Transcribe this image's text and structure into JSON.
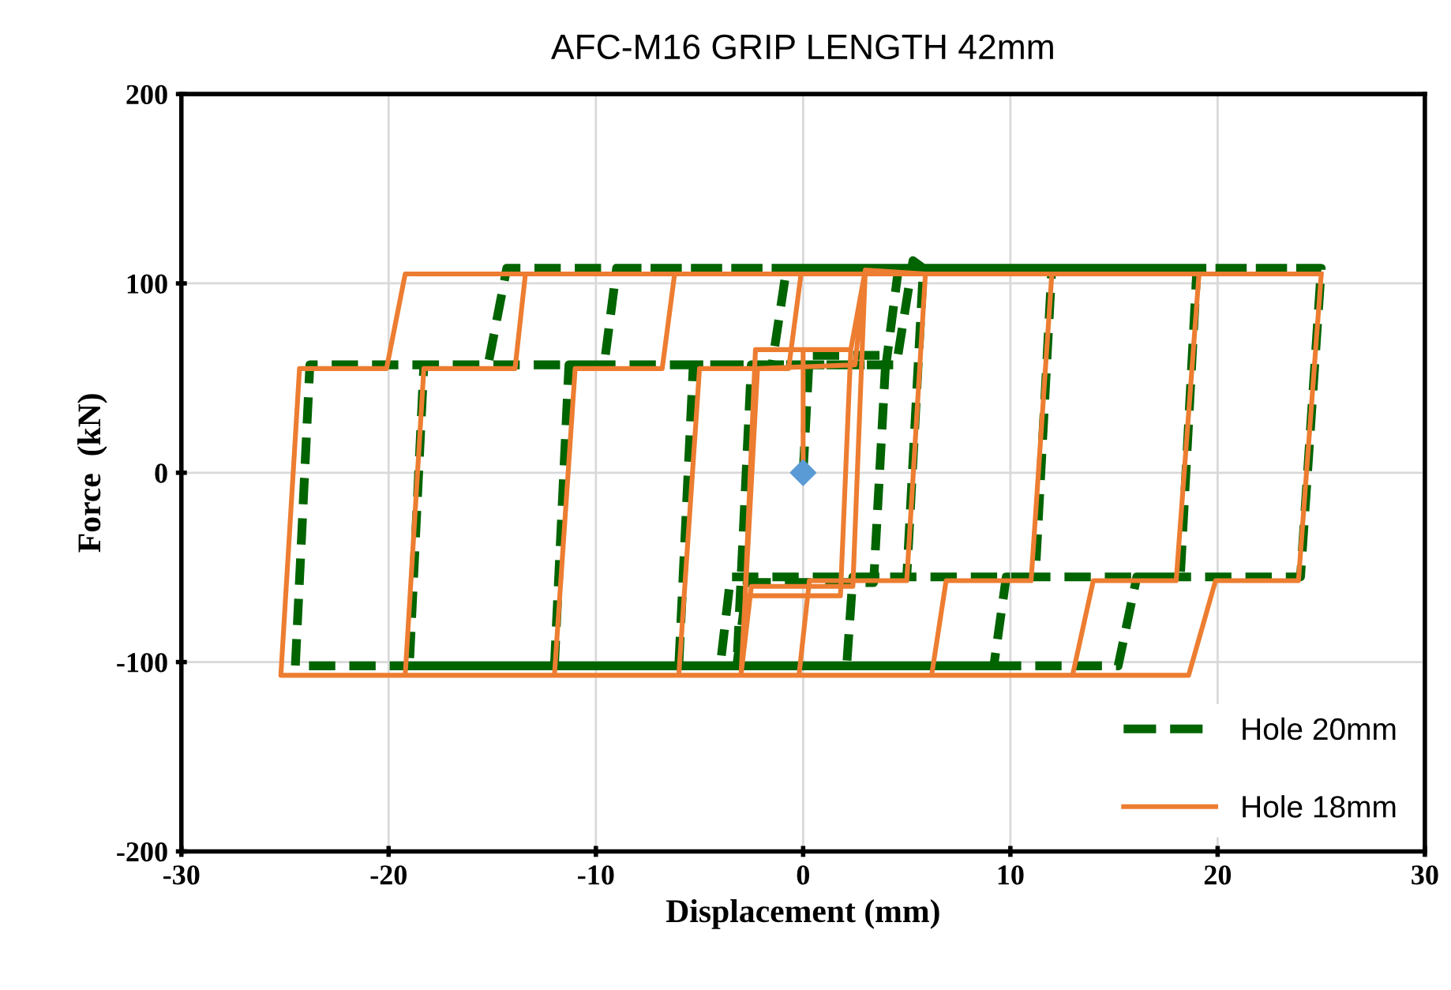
{
  "chart_data": {
    "type": "line",
    "title": "AFC-M16 GRIP LENGTH 42mm",
    "xlabel": "Displacement (mm)",
    "ylabel": "Force  (kN)",
    "xlim": [
      -30,
      30
    ],
    "xticks": [
      -30,
      -20,
      -10,
      0,
      10,
      20,
      30
    ],
    "ylim": [
      -200,
      200
    ],
    "yticks": [
      -200,
      -100,
      0,
      100,
      200
    ],
    "grid": true,
    "legend": "bottom right",
    "series": [
      {
        "name": "Hole 20mm",
        "color": "#006400",
        "line_style": "dashed",
        "x": [
          0,
          0.3,
          4,
          3.4,
          -2.7,
          -3.2,
          -2.5,
          4.5,
          5.3,
          5.8,
          5,
          -3.5,
          -4,
          -6,
          -5.3,
          4,
          4.6,
          12,
          11.2,
          2.4,
          2.1,
          -12,
          -11.3,
          -1.5,
          -0.8,
          19,
          18.2,
          9.8,
          9.2,
          -19,
          -18.3,
          -9.6,
          -9,
          25,
          24,
          16.1,
          15.2,
          -24.5,
          -23.8,
          -15.2,
          -14.3,
          25
        ],
        "values": [
          0,
          62,
          62,
          -58,
          -58,
          -102,
          57,
          57,
          112,
          108,
          -55,
          -55,
          -102,
          -102,
          57,
          57,
          108,
          108,
          -55,
          -55,
          -102,
          -102,
          57,
          57,
          108,
          108,
          -55,
          -55,
          -102,
          -102,
          57,
          57,
          108,
          108,
          -55,
          -55,
          -102,
          -102,
          57,
          57,
          108,
          108
        ]
      },
      {
        "name": "Hole 18mm",
        "color": "#ed7d31",
        "line_style": "solid",
        "x": [
          0,
          0,
          2.3,
          1.8,
          -2.8,
          -2.3,
          2.3,
          3,
          2.4,
          -2.5,
          -3,
          -2.2,
          2.5,
          3,
          5.9,
          5,
          0.3,
          -0.2,
          -6,
          -5,
          -0.7,
          -0.1,
          12,
          11,
          6.9,
          6.2,
          -12,
          -11,
          -6.8,
          -6.2,
          19.1,
          18,
          14,
          13,
          -19.2,
          -18.3,
          -13.9,
          -13.4,
          25,
          23.9,
          19.9,
          18.6,
          -25.2,
          -24.3,
          -20.1,
          -19.2,
          25
        ],
        "values": [
          0,
          65,
          65,
          -65,
          -65,
          65,
          65,
          107,
          -60,
          -60,
          -107,
          55,
          57,
          107,
          105,
          -57,
          -57,
          -107,
          -107,
          55,
          55,
          105,
          105,
          -57,
          -57,
          -107,
          -107,
          55,
          55,
          105,
          105,
          -57,
          -57,
          -107,
          -107,
          55,
          55,
          105,
          105,
          -57,
          -57,
          -107,
          -107,
          55,
          55,
          105,
          105
        ]
      },
      {
        "type": "scatter",
        "color": "#5b9bd5",
        "marker": "diamond",
        "x": [
          0
        ],
        "values": [
          0
        ]
      }
    ]
  }
}
